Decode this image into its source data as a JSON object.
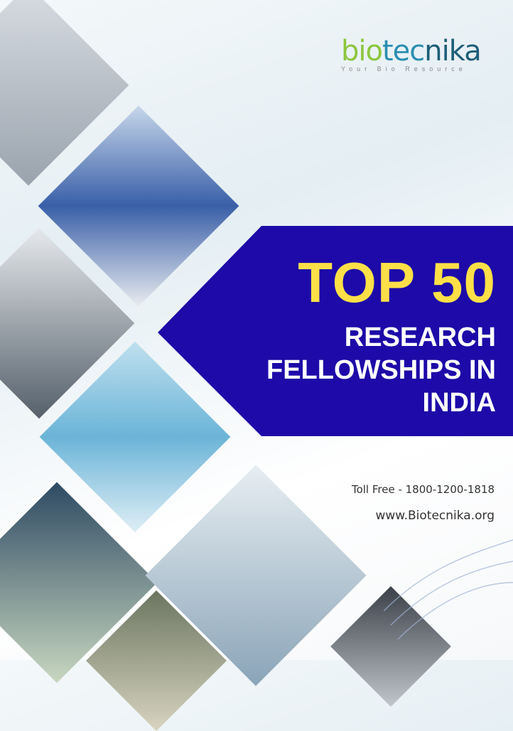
{
  "logo": {
    "name": "biotecnika",
    "tagline": "Your Bio Resource"
  },
  "headline": {
    "top": "TOP 50",
    "line1": "RESEARCH",
    "line2": "FELLOWSHIPS IN",
    "line3": "INDIA"
  },
  "contact": {
    "toll_free": "Toll Free - 1800-1200-1818",
    "website": "www.Biotecnika.org"
  },
  "colors": {
    "banner": "#1d0aa8",
    "title_accent": "#fde047",
    "logo_green": "#8cc63f",
    "logo_blue": "#2a8fb0"
  }
}
